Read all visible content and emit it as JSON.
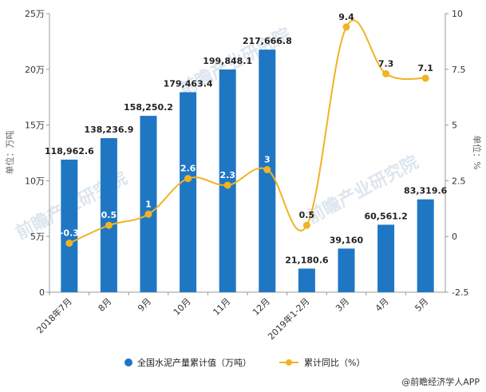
{
  "chart_data": {
    "type": "bar+line",
    "categories": [
      "2018年7月",
      "8月",
      "9月",
      "10月",
      "11月",
      "12月",
      "2019年1-2月",
      "3月",
      "4月",
      "5月"
    ],
    "series": [
      {
        "name": "全国水泥产量累计值（万吨）",
        "type": "bar",
        "axis": "left",
        "color": "#1f77c4",
        "values": [
          118962.6,
          138236.9,
          158250.2,
          179463.4,
          199848.1,
          217666.8,
          21180.6,
          39160,
          60561.2,
          83319.6
        ],
        "labels": [
          "118,962.6",
          "138,236.9",
          "158,250.2",
          "179,463.4",
          "199,848.1",
          "217,666.8",
          "21,180.6",
          "39,160",
          "60,561.2",
          "83,319.6"
        ]
      },
      {
        "name": "累计同比（%）",
        "type": "line",
        "axis": "right",
        "color": "#f0b323",
        "values": [
          -0.3,
          0.5,
          1,
          2.6,
          2.3,
          3,
          0.5,
          9.4,
          7.3,
          7.1
        ],
        "labels": [
          "-0.3",
          "0.5",
          "1",
          "2.6",
          "2.3",
          "3",
          "0.5",
          "9.4",
          "7.3",
          "7.1"
        ]
      }
    ],
    "left_axis": {
      "label": "单位：万吨",
      "ylim": [
        0,
        250000
      ],
      "ticks": [
        0,
        50000,
        100000,
        150000,
        200000,
        250000
      ],
      "tick_labels": [
        "0",
        "5万",
        "10万",
        "15万",
        "20万",
        "25万"
      ]
    },
    "right_axis": {
      "label": "单位：%",
      "ylim": [
        -2.5,
        10
      ],
      "ticks": [
        -2.5,
        0,
        2.5,
        5,
        7.5,
        10
      ],
      "tick_labels": [
        "-2.5",
        "0",
        "2.5",
        "5",
        "7.5",
        "10"
      ]
    },
    "grid": false,
    "legend": "bottom"
  },
  "source": "@前瞻经济学人APP",
  "watermark": "前瞻产业研究院"
}
